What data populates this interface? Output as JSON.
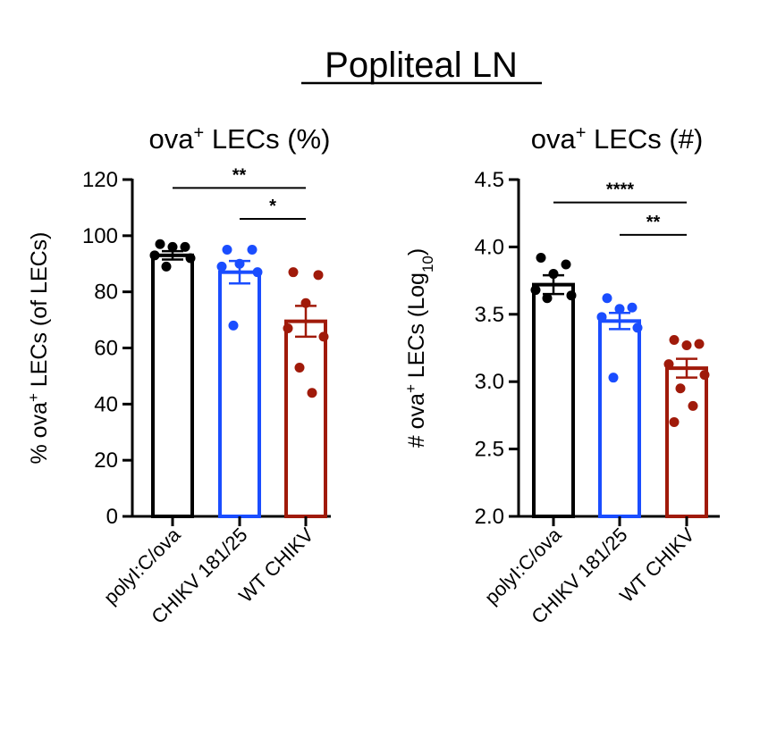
{
  "main_title": "Popliteal LN",
  "colors": {
    "polyI:C/ova": "#000000",
    "CHIKV 181/25": "#1a4dff",
    "WT CHIKV": "#a01a0a"
  },
  "chart_data": [
    {
      "type": "bar",
      "title_main": "ova",
      "title_sup": "+",
      "title_rest": " LECs (%)",
      "ylabel_pre": "% ova",
      "ylabel_sup": "+",
      "ylabel_rest": " LECs (of LECs)",
      "ylabel_sub": "",
      "ylabel_end": "",
      "ylim": [
        0,
        120
      ],
      "yticks": [
        "0",
        "20",
        "40",
        "60",
        "80",
        "100",
        "120"
      ],
      "ytick_values": [
        0,
        20,
        40,
        60,
        80,
        100,
        120
      ],
      "categories": [
        "polyI:C/ova",
        "CHIKV 181/25",
        "WT CHIKV"
      ],
      "means": [
        93,
        87,
        69.5
      ],
      "sem": [
        1.5,
        4,
        5.5
      ],
      "points": [
        [
          97,
          96,
          96,
          93,
          92,
          89
        ],
        [
          95,
          95,
          90,
          89,
          87,
          68
        ],
        [
          87,
          86,
          76,
          67,
          64,
          53,
          44
        ]
      ],
      "significance": [
        {
          "from": 0,
          "to": 2,
          "label": "**",
          "y": 117
        },
        {
          "from": 1,
          "to": 2,
          "label": "*",
          "y": 106
        }
      ]
    },
    {
      "type": "bar",
      "title_main": "ova",
      "title_sup": "+",
      "title_rest": " LECs (#)",
      "ylabel_pre": "# ova",
      "ylabel_sup": "+",
      "ylabel_rest": " LECs (Log",
      "ylabel_sub": "10",
      "ylabel_end": ")",
      "ylim": [
        2.0,
        4.5
      ],
      "yticks": [
        "2.0",
        "2.5",
        "3.0",
        "3.5",
        "4.0",
        "4.5"
      ],
      "ytick_values": [
        2.0,
        2.5,
        3.0,
        3.5,
        4.0,
        4.5
      ],
      "categories": [
        "polyI:C/ova",
        "CHIKV 181/25",
        "WT CHIKV"
      ],
      "means": [
        3.72,
        3.45,
        3.1
      ],
      "sem": [
        0.07,
        0.06,
        0.07
      ],
      "points": [
        [
          3.92,
          3.87,
          3.8,
          3.68,
          3.64,
          3.62
        ],
        [
          3.62,
          3.55,
          3.54,
          3.48,
          3.4,
          3.03
        ],
        [
          3.31,
          3.28,
          3.27,
          3.13,
          3.05,
          2.95,
          2.82,
          2.7
        ]
      ],
      "significance": [
        {
          "from": 0,
          "to": 2,
          "label": "****",
          "y": 4.33
        },
        {
          "from": 1,
          "to": 2,
          "label": "**",
          "y": 4.09
        }
      ]
    }
  ]
}
